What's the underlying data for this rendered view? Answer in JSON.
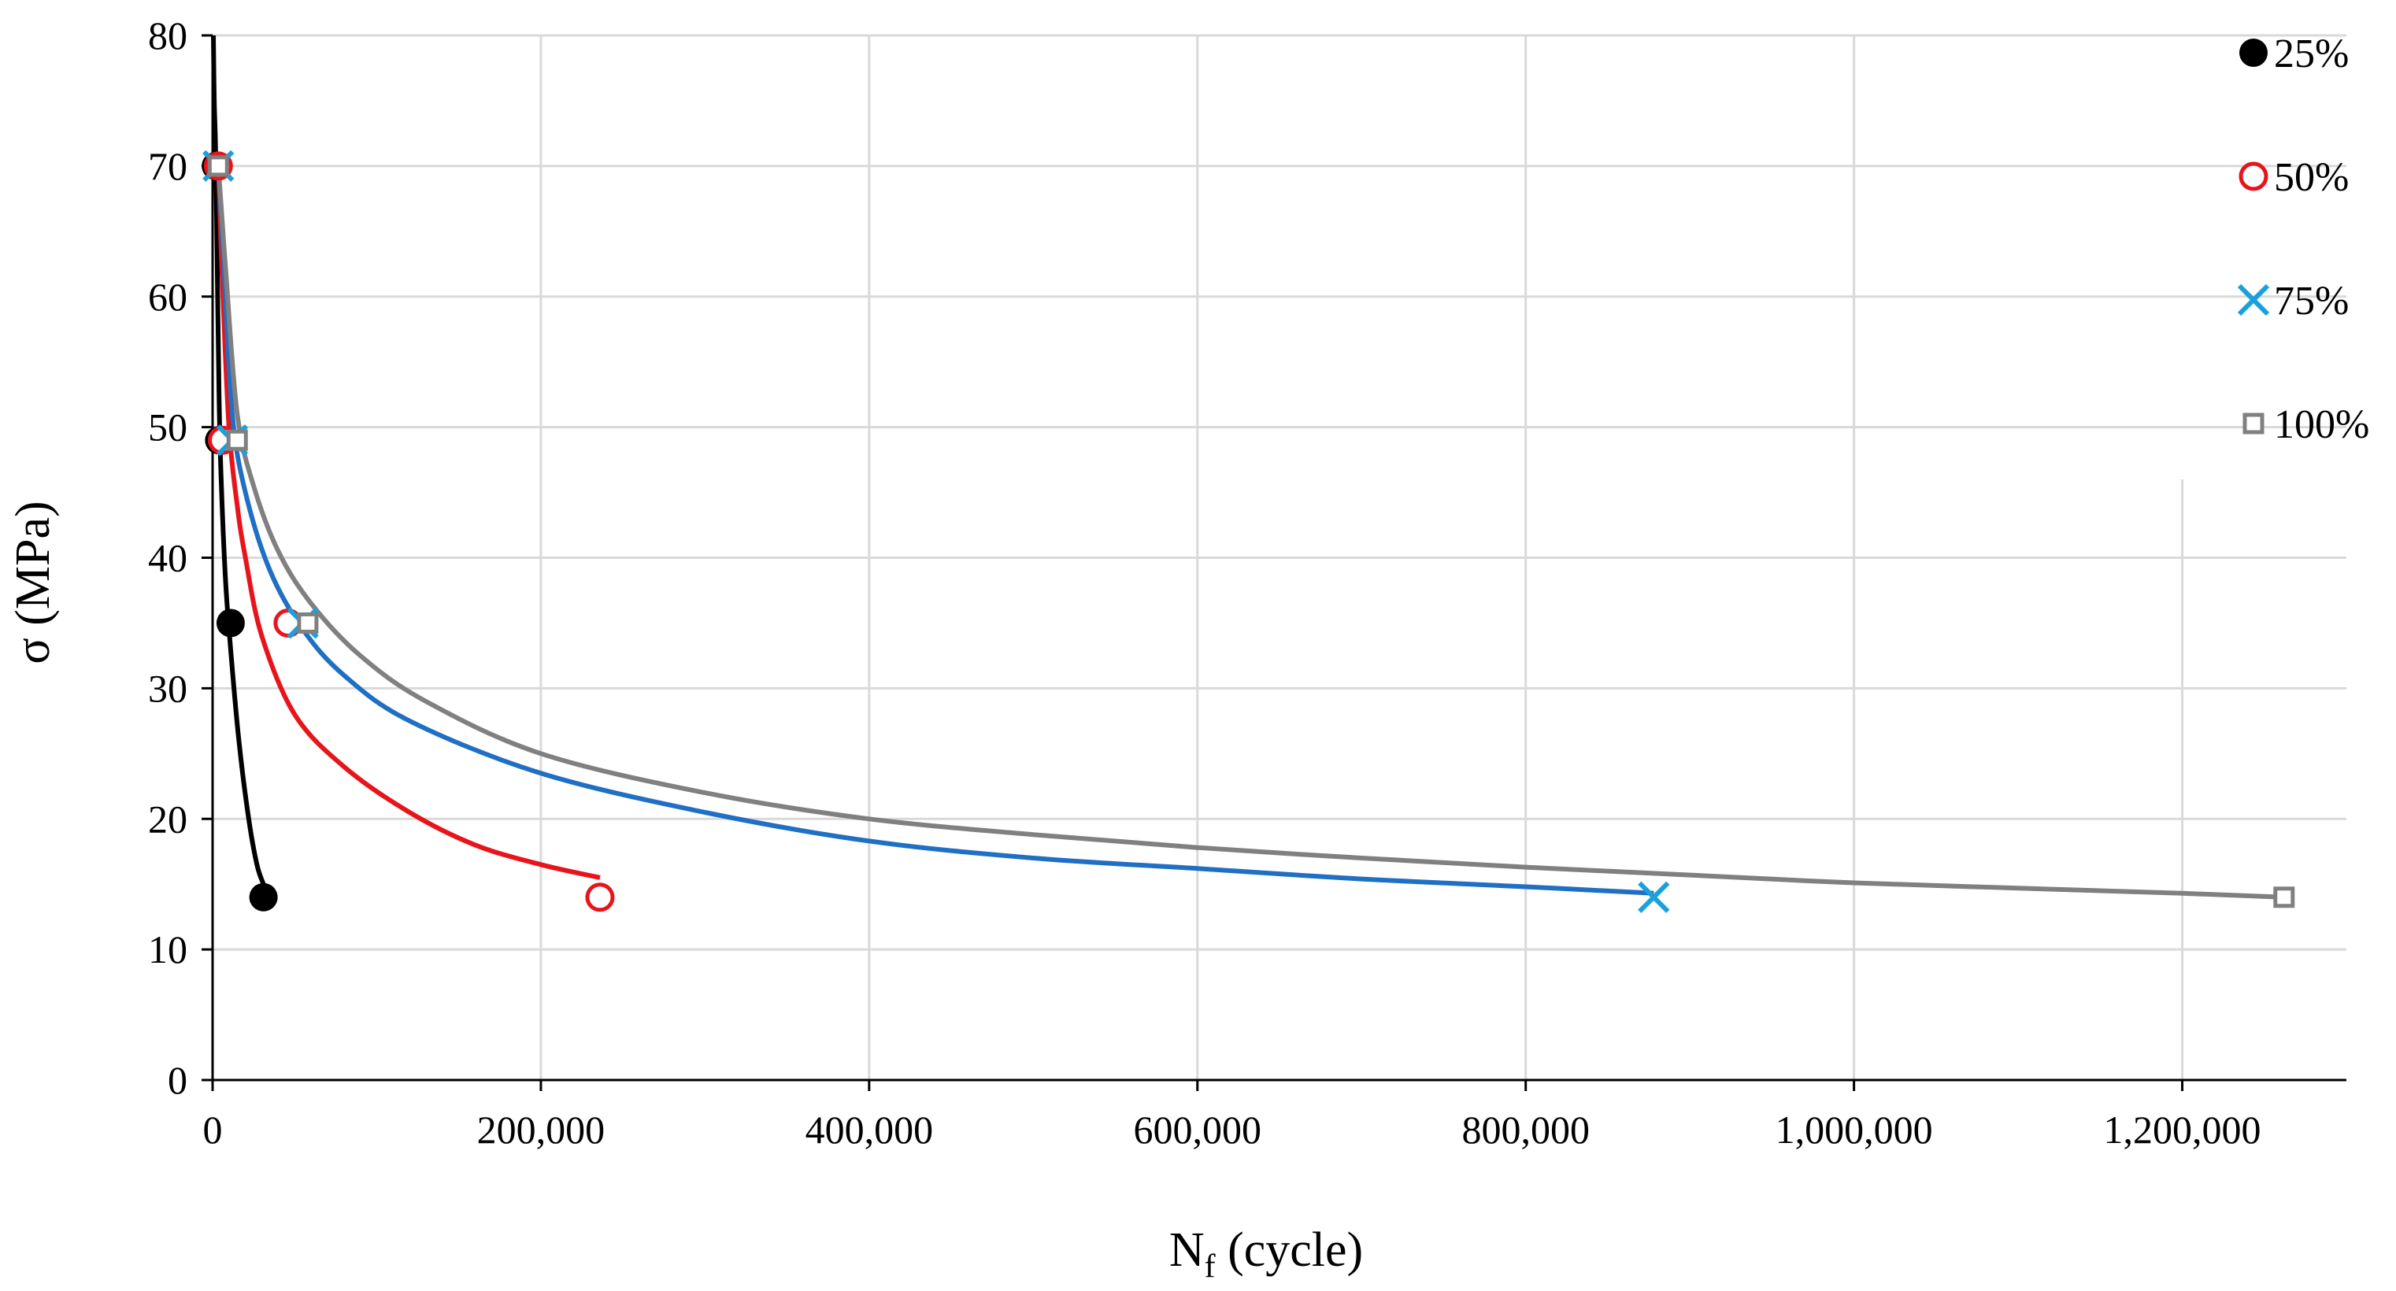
{
  "chart_data": {
    "type": "scatter",
    "title": "",
    "xlabel": {
      "main": "N",
      "sub": "f",
      "rest": " (cycle)"
    },
    "ylabel": "σ (MPa)",
    "xlim": [
      0,
      1300000
    ],
    "ylim": [
      0,
      80
    ],
    "grid": true,
    "x_ticks": [
      0,
      200000,
      400000,
      600000,
      800000,
      1000000,
      1200000
    ],
    "x_tick_labels": [
      "0",
      "200,000",
      "400,000",
      "600,000",
      "800,000",
      "1,000,000",
      "1,200,000"
    ],
    "y_ticks": [
      0,
      10,
      20,
      30,
      40,
      50,
      60,
      70,
      80
    ],
    "y_tick_labels": [
      "0",
      "10",
      "20",
      "30",
      "40",
      "50",
      "60",
      "70",
      "80"
    ],
    "legend_position": "right",
    "series": [
      {
        "name": "25%",
        "marker": "filled-circle",
        "color": "#000000",
        "line_color": "#000000",
        "points": [
          [
            2000,
            70
          ],
          [
            4000,
            49
          ],
          [
            11000,
            35
          ],
          [
            31000,
            14
          ]
        ],
        "curve": [
          [
            500,
            80
          ],
          [
            1000,
            75
          ],
          [
            2000,
            70
          ],
          [
            4000,
            52
          ],
          [
            5500,
            45
          ],
          [
            8000,
            38
          ],
          [
            11000,
            33
          ],
          [
            16000,
            26
          ],
          [
            22000,
            20
          ],
          [
            27000,
            16.5
          ],
          [
            31000,
            15
          ]
        ]
      },
      {
        "name": "50%",
        "marker": "open-circle",
        "color": "#e8141c",
        "line_color": "#e8141c",
        "points": [
          [
            3500,
            70
          ],
          [
            6000,
            49
          ],
          [
            46000,
            35
          ],
          [
            236000,
            14
          ]
        ],
        "curve": [
          [
            3500,
            70
          ],
          [
            6000,
            61
          ],
          [
            10000,
            50
          ],
          [
            15000,
            44
          ],
          [
            20000,
            40
          ],
          [
            30000,
            34
          ],
          [
            50000,
            28
          ],
          [
            80000,
            24
          ],
          [
            120000,
            20.5
          ],
          [
            160000,
            18
          ],
          [
            200000,
            16.5
          ],
          [
            236000,
            15.5
          ]
        ]
      },
      {
        "name": "75%",
        "marker": "cross",
        "color": "#1aa0dc",
        "line_color": "#1f6fc4",
        "points": [
          [
            3500,
            70
          ],
          [
            12000,
            49
          ],
          [
            55000,
            35
          ],
          [
            878000,
            14
          ]
        ],
        "curve": [
          [
            3500,
            70
          ],
          [
            7000,
            62
          ],
          [
            12000,
            51
          ],
          [
            20000,
            45
          ],
          [
            35000,
            39
          ],
          [
            55000,
            34.5
          ],
          [
            80000,
            31
          ],
          [
            120000,
            27.5
          ],
          [
            200000,
            23.5
          ],
          [
            300000,
            20.5
          ],
          [
            400000,
            18.3
          ],
          [
            500000,
            17
          ],
          [
            600000,
            16.2
          ],
          [
            700000,
            15.4
          ],
          [
            800000,
            14.8
          ],
          [
            878000,
            14.3
          ]
        ]
      },
      {
        "name": "100%",
        "marker": "open-square",
        "color": "#808080",
        "line_color": "#808080",
        "points": [
          [
            3500,
            70
          ],
          [
            15000,
            49
          ],
          [
            58000,
            35
          ],
          [
            1262000,
            14
          ]
        ],
        "curve": [
          [
            3500,
            70
          ],
          [
            8000,
            62
          ],
          [
            15000,
            51
          ],
          [
            25000,
            45.5
          ],
          [
            40000,
            40.5
          ],
          [
            60000,
            36.5
          ],
          [
            90000,
            32.5
          ],
          [
            130000,
            29
          ],
          [
            200000,
            25
          ],
          [
            300000,
            22
          ],
          [
            400000,
            20
          ],
          [
            500000,
            18.8
          ],
          [
            600000,
            17.8
          ],
          [
            700000,
            17
          ],
          [
            800000,
            16.3
          ],
          [
            900000,
            15.7
          ],
          [
            1000000,
            15.1
          ],
          [
            1100000,
            14.7
          ],
          [
            1200000,
            14.3
          ],
          [
            1262000,
            14
          ]
        ]
      }
    ]
  }
}
